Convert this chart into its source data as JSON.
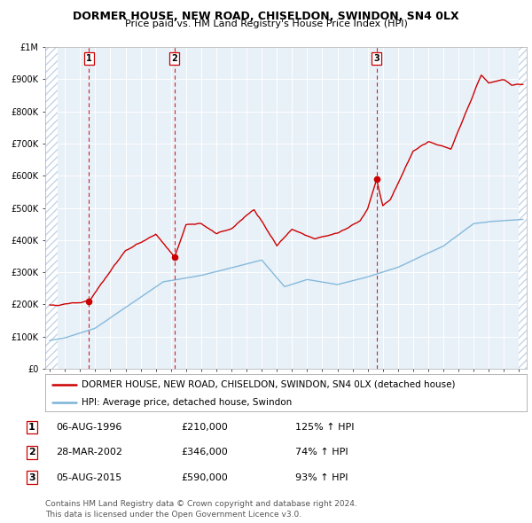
{
  "title": "DORMER HOUSE, NEW ROAD, CHISELDON, SWINDON, SN4 0LX",
  "subtitle": "Price paid vs. HM Land Registry's House Price Index (HPI)",
  "ylabel_ticks": [
    "£0",
    "£100K",
    "£200K",
    "£300K",
    "£400K",
    "£500K",
    "£600K",
    "£700K",
    "£800K",
    "£900K",
    "£1M"
  ],
  "ytick_values": [
    0,
    100000,
    200000,
    300000,
    400000,
    500000,
    600000,
    700000,
    800000,
    900000,
    1000000
  ],
  "ylim": [
    0,
    1000000
  ],
  "xlim_start": 1993.7,
  "xlim_end": 2025.5,
  "plot_bg_color": "#e8f0f8",
  "hatch_color": "#c5d5e8",
  "red_line_color": "#cc0000",
  "blue_line_color": "#7ab4d8",
  "dashed_line_color": "#cc0000",
  "purchase_dates": [
    1996.58,
    2002.23,
    2015.58
  ],
  "purchase_prices": [
    210000,
    346000,
    590000
  ],
  "purchase_labels": [
    "1",
    "2",
    "3"
  ],
  "legend_red_label": "DORMER HOUSE, NEW ROAD, CHISELDON, SWINDON, SN4 0LX (detached house)",
  "legend_blue_label": "HPI: Average price, detached house, Swindon",
  "table_rows": [
    {
      "num": "1",
      "date": "06-AUG-1996",
      "price": "£210,000",
      "hpi": "125% ↑ HPI"
    },
    {
      "num": "2",
      "date": "28-MAR-2002",
      "price": "£346,000",
      "hpi": "74% ↑ HPI"
    },
    {
      "num": "3",
      "date": "05-AUG-2015",
      "price": "£590,000",
      "hpi": "93% ↑ HPI"
    }
  ],
  "footer": "Contains HM Land Registry data © Crown copyright and database right 2024.\nThis data is licensed under the Open Government Licence v3.0.",
  "title_fontsize": 9,
  "subtitle_fontsize": 8,
  "tick_fontsize": 7,
  "legend_fontsize": 7.5,
  "table_fontsize": 8,
  "footer_fontsize": 6.5
}
